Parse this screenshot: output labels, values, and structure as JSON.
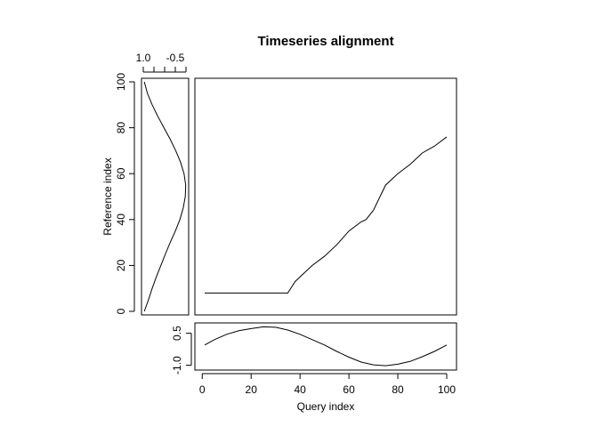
{
  "chart_data": [
    {
      "type": "line",
      "panel": "alignment",
      "title": "Timeseries alignment",
      "xlim": [
        1,
        100
      ],
      "ylim": [
        0,
        100
      ],
      "x": [
        1,
        5,
        10,
        15,
        20,
        25,
        30,
        35,
        38,
        40,
        45,
        50,
        55,
        60,
        65,
        67,
        70,
        75,
        80,
        85,
        90,
        95,
        100
      ],
      "y": [
        8,
        8,
        8,
        8,
        8,
        8,
        8,
        8,
        13,
        15,
        20,
        24,
        29,
        35,
        39,
        40,
        44,
        55,
        60,
        64,
        69,
        72,
        76
      ]
    },
    {
      "type": "line",
      "panel": "query",
      "xlabel": "Query index",
      "xticks": [
        "0",
        "20",
        "40",
        "60",
        "80",
        "100"
      ],
      "yticks": [
        "-1.0",
        "0.5"
      ],
      "xlim": [
        1,
        100
      ],
      "ylim": [
        -1.1,
        0.9
      ],
      "x": [
        1,
        5,
        10,
        15,
        20,
        25,
        30,
        35,
        40,
        45,
        50,
        55,
        60,
        65,
        70,
        75,
        80,
        85,
        90,
        95,
        100
      ],
      "y": [
        -0.05,
        0.2,
        0.45,
        0.62,
        0.72,
        0.8,
        0.78,
        0.65,
        0.45,
        0.2,
        -0.05,
        -0.35,
        -0.62,
        -0.85,
        -0.98,
        -1.02,
        -0.95,
        -0.82,
        -0.6,
        -0.35,
        -0.05
      ]
    },
    {
      "type": "line",
      "panel": "reference",
      "ylabel": "Reference index",
      "yticks": [
        "0",
        "20",
        "40",
        "60",
        "80",
        "100"
      ],
      "xticks": [
        "1.0",
        "-0.5"
      ],
      "xlim": [
        1.05,
        -1.1
      ],
      "ylim": [
        0,
        100
      ],
      "y": [
        0,
        5,
        10,
        15,
        20,
        25,
        30,
        35,
        40,
        45,
        50,
        55,
        60,
        65,
        70,
        75,
        80,
        85,
        90,
        95,
        100
      ],
      "x": [
        1.0,
        0.8,
        0.62,
        0.42,
        0.2,
        -0.02,
        -0.25,
        -0.5,
        -0.72,
        -0.88,
        -0.98,
        -1.0,
        -0.92,
        -0.75,
        -0.52,
        -0.25,
        0.05,
        0.35,
        0.62,
        0.85,
        1.0
      ]
    }
  ]
}
